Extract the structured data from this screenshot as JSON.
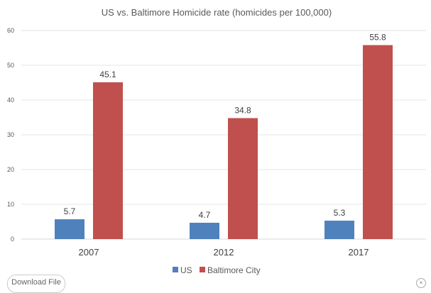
{
  "chart_data": {
    "type": "bar",
    "title": "US vs. Baltimore Homicide rate (homicides per 100,000)",
    "categories": [
      "2007",
      "2012",
      "2017"
    ],
    "series": [
      {
        "name": "US",
        "values": [
          5.7,
          4.7,
          5.3
        ],
        "color": "#4f81bd"
      },
      {
        "name": "Baltimore City",
        "values": [
          45.1,
          34.8,
          55.8
        ],
        "color": "#c0504d"
      }
    ],
    "ylim": [
      0,
      60
    ],
    "yticks": [
      0,
      10,
      20,
      30,
      40,
      50,
      60
    ],
    "grid": true,
    "legend": "bottom",
    "xlabel": "",
    "ylabel": ""
  },
  "ui": {
    "download_label": "Download File",
    "close_icon": "close-icon"
  }
}
